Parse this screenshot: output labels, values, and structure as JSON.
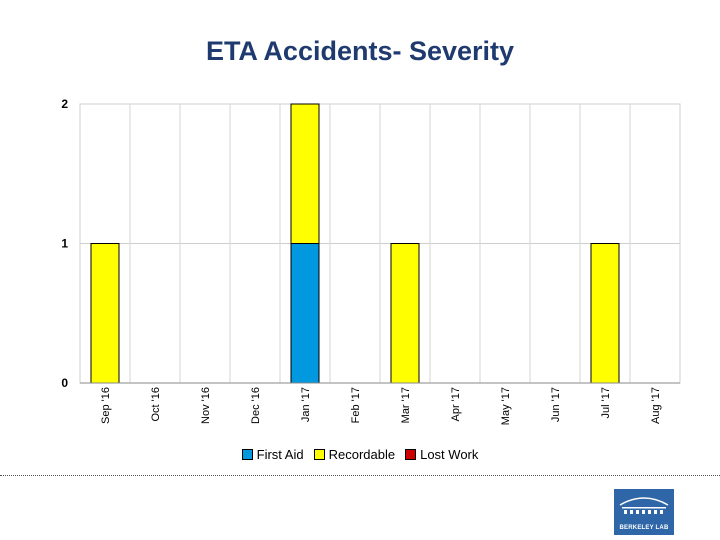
{
  "chart_data": {
    "type": "bar",
    "stacked": true,
    "title": "ETA Accidents-  Severity",
    "categories": [
      "Sep '16",
      "Oct '16",
      "Nov '16",
      "Dec '16",
      "Jan '17",
      "Feb '17",
      "Mar '17",
      "Apr '17",
      "May '17",
      "Jun '17",
      "Jul '17",
      "Aug '17"
    ],
    "series": [
      {
        "name": "First Aid",
        "color": "#0099e0",
        "values": [
          0,
          0,
          0,
          0,
          1,
          0,
          0,
          0,
          0,
          0,
          0,
          0
        ]
      },
      {
        "name": "Recordable",
        "color": "#ffff00",
        "values": [
          1,
          0,
          0,
          0,
          1,
          0,
          1,
          0,
          0,
          0,
          1,
          0
        ]
      },
      {
        "name": "Lost Work",
        "color": "#cc0000",
        "values": [
          0,
          0,
          0,
          0,
          0,
          0,
          0,
          0,
          0,
          0,
          0,
          0
        ]
      }
    ],
    "ylim": [
      0,
      2
    ],
    "yticks": [
      0,
      1,
      2
    ],
    "xlabel": "",
    "ylabel": "",
    "grid": true,
    "legend_position": "bottom"
  },
  "logo": {
    "text": "BERKELEY LAB"
  }
}
